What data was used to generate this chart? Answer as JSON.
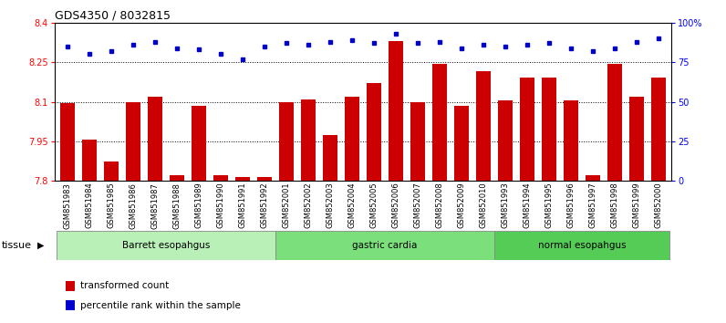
{
  "title": "GDS4350 / 8032815",
  "samples": [
    "GSM851983",
    "GSM851984",
    "GSM851985",
    "GSM851986",
    "GSM851987",
    "GSM851988",
    "GSM851989",
    "GSM851990",
    "GSM851991",
    "GSM851992",
    "GSM852001",
    "GSM852002",
    "GSM852003",
    "GSM852004",
    "GSM852005",
    "GSM852006",
    "GSM852007",
    "GSM852008",
    "GSM852009",
    "GSM852010",
    "GSM851993",
    "GSM851994",
    "GSM851995",
    "GSM851996",
    "GSM851997",
    "GSM851998",
    "GSM851999",
    "GSM852000"
  ],
  "bar_values": [
    8.095,
    7.955,
    7.875,
    8.1,
    8.12,
    7.82,
    8.085,
    7.82,
    7.815,
    7.815,
    8.1,
    8.11,
    7.975,
    8.12,
    8.17,
    8.33,
    8.1,
    8.245,
    8.085,
    8.215,
    8.105,
    8.19,
    8.19,
    8.105,
    7.82,
    8.245,
    8.12,
    8.19
  ],
  "percentile_values": [
    85,
    80,
    82,
    86,
    88,
    84,
    83,
    80,
    77,
    85,
    87,
    86,
    88,
    89,
    87,
    93,
    87,
    88,
    84,
    86,
    85,
    86,
    87,
    84,
    82,
    84,
    88,
    90
  ],
  "bar_color": "#cc0000",
  "dot_color": "#0000cc",
  "ylim_left": [
    7.8,
    8.4
  ],
  "ylim_right": [
    0,
    100
  ],
  "yticks_left": [
    7.8,
    7.95,
    8.1,
    8.25,
    8.4
  ],
  "yticks_right": [
    0,
    25,
    50,
    75,
    100
  ],
  "ytick_labels_right": [
    "0",
    "25",
    "50",
    "75",
    "100%"
  ],
  "grid_values": [
    7.95,
    8.1,
    8.25
  ],
  "groups": [
    {
      "label": "Barrett esopahgus",
      "start": 0,
      "end": 10
    },
    {
      "label": "gastric cardia",
      "start": 10,
      "end": 20
    },
    {
      "label": "normal esopahgus",
      "start": 20,
      "end": 28
    }
  ],
  "group_colors": [
    "#b8f0b8",
    "#7be07b",
    "#55cc55"
  ],
  "tissue_label": "tissue",
  "legend_bar_label": "transformed count",
  "legend_dot_label": "percentile rank within the sample",
  "background_color": "#ffffff",
  "title_fontsize": 9,
  "axis_fontsize": 7,
  "tick_label_fontsize": 6,
  "group_label_fontsize": 7.5
}
